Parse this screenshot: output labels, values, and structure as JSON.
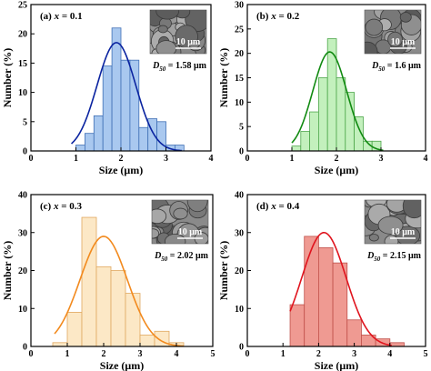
{
  "chart_data": [
    {
      "type": "bar",
      "panel_label": "(a) x = 0.1",
      "panel_label_parts": {
        "prefix": "(a) ",
        "var": "x",
        "suffix": " = 0.1"
      },
      "d50_text": "D50 = 1.58 μm",
      "d50_parts": {
        "sym": "D",
        "sub": "50",
        "value": " = 1.58 μm"
      },
      "inset_scale": "10 μm",
      "xlabel": "Size (μm)",
      "ylabel": "Number (%)",
      "xlim": [
        0,
        4
      ],
      "ylim": [
        0,
        25
      ],
      "xticks": [
        0,
        1,
        2,
        3,
        4
      ],
      "yticks": [
        0,
        5,
        10,
        15,
        20,
        25
      ],
      "bar_width": 0.2,
      "bars": [
        {
          "x": 1.1,
          "y": 1
        },
        {
          "x": 1.3,
          "y": 3
        },
        {
          "x": 1.5,
          "y": 6
        },
        {
          "x": 1.7,
          "y": 14.5
        },
        {
          "x": 1.9,
          "y": 21
        },
        {
          "x": 2.1,
          "y": 15.5
        },
        {
          "x": 2.3,
          "y": 15.5
        },
        {
          "x": 2.5,
          "y": 4
        },
        {
          "x": 2.7,
          "y": 5.5
        },
        {
          "x": 2.9,
          "y": 5
        },
        {
          "x": 3.1,
          "y": 1
        },
        {
          "x": 3.3,
          "y": 1
        }
      ],
      "fit": {
        "mu": 1.9,
        "sigma": 0.43,
        "peak": 18.5,
        "x_range": [
          0.9,
          3.35
        ]
      },
      "colors": {
        "fill": "#a9c8ef",
        "stroke": "#3f6fb5",
        "curve": "#0a23a0",
        "label": "#0000cc"
      }
    },
    {
      "type": "bar",
      "panel_label": "(b) x = 0.2",
      "panel_label_parts": {
        "prefix": "(b) ",
        "var": "x",
        "suffix": " = 0.2"
      },
      "d50_text": "D50 = 1.6 μm",
      "d50_parts": {
        "sym": "D",
        "sub": "50",
        "value": " = 1.6 μm"
      },
      "inset_scale": "10 μm",
      "xlabel": "Size (μm)",
      "ylabel": "Number (%)",
      "xlim": [
        0,
        4
      ],
      "ylim": [
        0,
        30
      ],
      "xticks": [
        0,
        1,
        2,
        3,
        4
      ],
      "yticks": [
        0,
        5,
        10,
        15,
        20,
        25,
        30
      ],
      "bar_width": 0.2,
      "bars": [
        {
          "x": 1.1,
          "y": 1
        },
        {
          "x": 1.3,
          "y": 4
        },
        {
          "x": 1.5,
          "y": 8
        },
        {
          "x": 1.7,
          "y": 15
        },
        {
          "x": 1.9,
          "y": 23
        },
        {
          "x": 2.1,
          "y": 15
        },
        {
          "x": 2.3,
          "y": 12
        },
        {
          "x": 2.5,
          "y": 7
        },
        {
          "x": 2.7,
          "y": 2
        },
        {
          "x": 2.9,
          "y": 2
        }
      ],
      "fit": {
        "mu": 1.85,
        "sigma": 0.38,
        "peak": 20.3,
        "x_range": [
          1.0,
          3.05
        ]
      },
      "colors": {
        "fill": "#c3f0bd",
        "stroke": "#4da64a",
        "curve": "#118a11",
        "label": "#0000cc"
      }
    },
    {
      "type": "bar",
      "panel_label": "(c) x = 0.3",
      "panel_label_parts": {
        "prefix": "(c) ",
        "var": "x",
        "suffix": " = 0.3"
      },
      "d50_text": "D50 = 2.02 μm",
      "d50_parts": {
        "sym": "D",
        "sub": "50",
        "value": " = 2.02 μm"
      },
      "inset_scale": "10 μm",
      "xlabel": "Size (μm)",
      "ylabel": "Number (%)",
      "xlim": [
        0,
        5
      ],
      "ylim": [
        0,
        40
      ],
      "xticks": [
        0,
        1,
        2,
        3,
        4,
        5
      ],
      "yticks": [
        0,
        10,
        20,
        30,
        40
      ],
      "bar_width": 0.4,
      "bars": [
        {
          "x": 0.8,
          "y": 1
        },
        {
          "x": 1.2,
          "y": 9
        },
        {
          "x": 1.6,
          "y": 34
        },
        {
          "x": 2.0,
          "y": 21
        },
        {
          "x": 2.4,
          "y": 20
        },
        {
          "x": 2.8,
          "y": 14
        },
        {
          "x": 3.2,
          "y": 3
        },
        {
          "x": 3.6,
          "y": 4
        },
        {
          "x": 4.0,
          "y": 1
        }
      ],
      "fit": {
        "mu": 2.0,
        "sigma": 0.65,
        "peak": 29,
        "x_range": [
          0.65,
          4.2
        ]
      },
      "colors": {
        "fill": "#fce8c6",
        "stroke": "#e0a860",
        "curve": "#f28a1e",
        "label": "#0000cc"
      }
    },
    {
      "type": "bar",
      "panel_label": "(d) x = 0.4",
      "panel_label_parts": {
        "prefix": "(d) ",
        "var": "x",
        "suffix": " = 0.4"
      },
      "d50_text": "D50 = 2.15 μm",
      "d50_parts": {
        "sym": "D",
        "sub": "50",
        "value": " = 2.15 μm"
      },
      "inset_scale": "10 μm",
      "xlabel": "Size (μm)",
      "ylabel": "Number (%)",
      "xlim": [
        0,
        5
      ],
      "ylim": [
        0,
        40
      ],
      "xticks": [
        0,
        1,
        2,
        3,
        4,
        5
      ],
      "yticks": [
        0,
        10,
        20,
        30,
        40
      ],
      "bar_width": 0.4,
      "bars": [
        {
          "x": 1.4,
          "y": 11
        },
        {
          "x": 1.8,
          "y": 29
        },
        {
          "x": 2.2,
          "y": 26
        },
        {
          "x": 2.6,
          "y": 22
        },
        {
          "x": 3.0,
          "y": 7
        },
        {
          "x": 3.4,
          "y": 3
        },
        {
          "x": 3.8,
          "y": 2
        },
        {
          "x": 4.2,
          "y": 1
        }
      ],
      "fit": {
        "mu": 2.15,
        "sigma": 0.62,
        "peak": 30,
        "x_range": [
          1.2,
          4.05
        ]
      },
      "colors": {
        "fill": "#ef9a92",
        "stroke": "#c0504a",
        "curve": "#e0141e",
        "label": "#0000cc"
      }
    }
  ]
}
